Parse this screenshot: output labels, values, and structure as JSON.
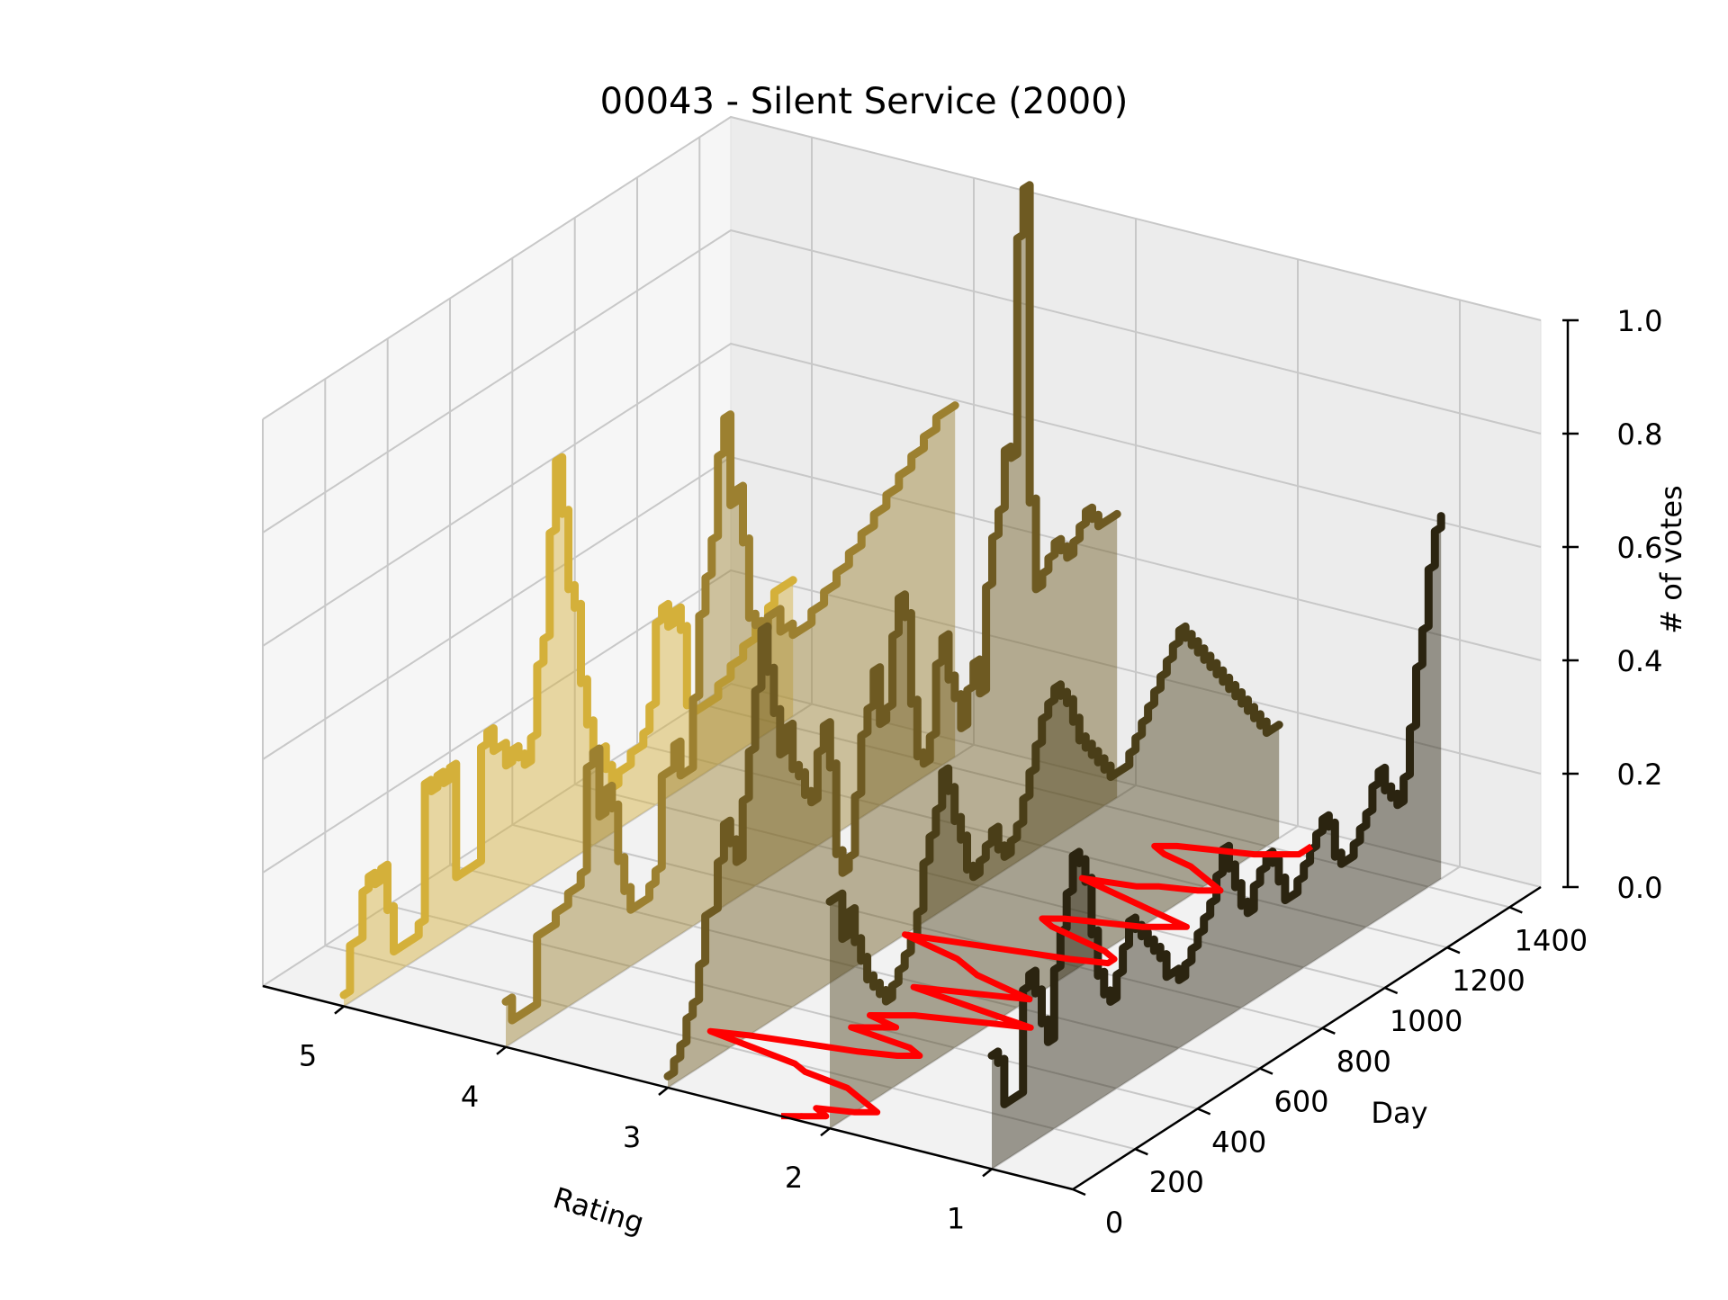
{
  "chart_data": {
    "type": "line",
    "title": "00043 - Silent Service (2000)",
    "xlabel": "Rating",
    "ylabel": "Day",
    "zlabel": "# of votes",
    "x_ticks": [
      "5",
      "4",
      "3",
      "2",
      "1"
    ],
    "y_ticks": [
      "0",
      "200",
      "400",
      "600",
      "800",
      "1000",
      "1200",
      "1400"
    ],
    "z_ticks": [
      "0.0",
      "0.2",
      "0.4",
      "0.6",
      "0.8",
      "1.0"
    ],
    "xlim": [
      0.5,
      5.5
    ],
    "ylim": [
      0,
      1500
    ],
    "zlim": [
      0,
      1.0
    ],
    "grid": true,
    "series": [
      {
        "rating": 5,
        "color": "#d4b03a",
        "x": [
          0,
          20,
          40,
          60,
          80,
          100,
          120,
          140,
          160,
          180,
          200,
          220,
          240,
          260,
          280,
          300,
          320,
          340,
          360,
          380,
          400,
          420,
          440,
          460,
          480,
          500,
          520,
          540,
          560,
          580,
          600,
          620,
          640,
          660,
          680,
          700,
          720,
          740,
          760,
          780,
          800,
          820,
          840,
          860,
          880,
          900,
          920,
          940,
          960,
          980,
          1000,
          1020,
          1040,
          1060,
          1080,
          1100,
          1120,
          1140,
          1160,
          1180,
          1200,
          1220,
          1240,
          1260,
          1280,
          1300,
          1320,
          1340,
          1360,
          1380,
          1400,
          1420,
          1440
        ],
        "y": [
          0.02,
          0.1,
          0.1,
          0.18,
          0.2,
          0.18,
          0.2,
          0.12,
          0.04,
          0.04,
          0.04,
          0.04,
          0.06,
          0.3,
          0.28,
          0.3,
          0.28,
          0.3,
          0.1,
          0.1,
          0.1,
          0.1,
          0.3,
          0.32,
          0.28,
          0.28,
          0.24,
          0.26,
          0.24,
          0.22,
          0.26,
          0.38,
          0.42,
          0.6,
          0.72,
          0.62,
          0.48,
          0.44,
          0.3,
          0.22,
          0.16,
          0.16,
          0.12,
          0.08,
          0.1,
          0.1,
          0.12,
          0.12,
          0.14,
          0.18,
          0.32,
          0.34,
          0.3,
          0.32,
          0.28,
          0.14,
          0.12,
          0.12,
          0.12,
          0.12,
          0.14,
          0.14,
          0.16,
          0.16,
          0.18,
          0.18,
          0.2,
          0.2,
          0.22,
          0.24,
          0.24,
          0.24,
          0.24
        ]
      },
      {
        "rating": 4,
        "color": "#9c8030",
        "x": [
          0,
          20,
          40,
          60,
          80,
          100,
          120,
          140,
          160,
          180,
          200,
          220,
          240,
          260,
          280,
          300,
          320,
          340,
          360,
          380,
          400,
          420,
          440,
          460,
          480,
          500,
          520,
          540,
          560,
          580,
          600,
          620,
          640,
          660,
          680,
          700,
          720,
          740,
          760,
          780,
          800,
          820,
          840,
          860,
          880,
          900,
          920,
          940,
          960,
          980,
          1000,
          1020,
          1040,
          1060,
          1080,
          1100,
          1120,
          1140,
          1160,
          1180,
          1200,
          1220,
          1240,
          1260,
          1280,
          1300,
          1320,
          1340,
          1360,
          1380,
          1400,
          1420,
          1440
        ],
        "y": [
          0.08,
          0.04,
          0.04,
          0.04,
          0.04,
          0.16,
          0.16,
          0.16,
          0.18,
          0.18,
          0.2,
          0.2,
          0.22,
          0.4,
          0.42,
          0.3,
          0.34,
          0.3,
          0.2,
          0.14,
          0.1,
          0.1,
          0.1,
          0.12,
          0.14,
          0.3,
          0.3,
          0.34,
          0.28,
          0.28,
          0.4,
          0.54,
          0.6,
          0.66,
          0.8,
          0.86,
          0.7,
          0.72,
          0.62,
          0.48,
          0.46,
          0.44,
          0.46,
          0.46,
          0.42,
          0.42,
          0.4,
          0.4,
          0.4,
          0.42,
          0.42,
          0.44,
          0.44,
          0.46,
          0.46,
          0.48,
          0.48,
          0.5,
          0.5,
          0.52,
          0.52,
          0.54,
          0.54,
          0.56,
          0.56,
          0.58,
          0.58,
          0.6,
          0.6,
          0.62,
          0.62,
          0.62,
          0.62
        ]
      },
      {
        "rating": 3,
        "color": "#6e5a22",
        "x": [
          0,
          20,
          40,
          60,
          80,
          100,
          120,
          140,
          160,
          180,
          200,
          220,
          240,
          260,
          280,
          300,
          320,
          340,
          360,
          380,
          400,
          420,
          440,
          460,
          480,
          500,
          520,
          540,
          560,
          580,
          600,
          620,
          640,
          660,
          680,
          700,
          720,
          740,
          760,
          780,
          800,
          820,
          840,
          860,
          880,
          900,
          920,
          940,
          960,
          980,
          1000,
          1020,
          1040,
          1060,
          1080,
          1100,
          1120,
          1140,
          1160,
          1180,
          1200,
          1220,
          1240,
          1260,
          1280,
          1300,
          1320,
          1340,
          1360,
          1380,
          1400,
          1420,
          1440
        ],
        "y": [
          0.02,
          0.04,
          0.06,
          0.1,
          0.12,
          0.18,
          0.26,
          0.26,
          0.34,
          0.4,
          0.36,
          0.32,
          0.42,
          0.5,
          0.6,
          0.7,
          0.62,
          0.54,
          0.46,
          0.5,
          0.42,
          0.4,
          0.36,
          0.34,
          0.42,
          0.46,
          0.38,
          0.22,
          0.18,
          0.2,
          0.3,
          0.4,
          0.44,
          0.5,
          0.4,
          0.42,
          0.54,
          0.6,
          0.56,
          0.4,
          0.3,
          0.28,
          0.32,
          0.44,
          0.48,
          0.4,
          0.36,
          0.3,
          0.36,
          0.4,
          0.34,
          0.52,
          0.6,
          0.64,
          0.74,
          0.72,
          1.1,
          1.18,
          0.62,
          0.46,
          0.48,
          0.5,
          0.52,
          0.5,
          0.48,
          0.5,
          0.52,
          0.54,
          0.52,
          0.5,
          0.5,
          0.5,
          0.5
        ]
      },
      {
        "rating": 2,
        "color": "#4a3e18",
        "x": [
          0,
          20,
          40,
          60,
          80,
          100,
          120,
          140,
          160,
          180,
          200,
          220,
          240,
          260,
          280,
          300,
          320,
          340,
          360,
          380,
          400,
          420,
          440,
          460,
          480,
          500,
          520,
          540,
          560,
          580,
          600,
          620,
          640,
          660,
          680,
          700,
          720,
          740,
          760,
          780,
          800,
          820,
          840,
          860,
          880,
          900,
          920,
          940,
          960,
          980,
          1000,
          1020,
          1040,
          1060,
          1080,
          1100,
          1120,
          1140,
          1160,
          1180,
          1200,
          1220,
          1240,
          1260,
          1280,
          1300,
          1320,
          1340,
          1360,
          1380,
          1400,
          1420,
          1440
        ],
        "y": [
          0.4,
          0.4,
          0.32,
          0.36,
          0.3,
          0.26,
          0.22,
          0.2,
          0.18,
          0.16,
          0.18,
          0.2,
          0.22,
          0.24,
          0.28,
          0.36,
          0.4,
          0.44,
          0.5,
          0.46,
          0.4,
          0.36,
          0.3,
          0.28,
          0.3,
          0.32,
          0.34,
          0.3,
          0.28,
          0.3,
          0.32,
          0.36,
          0.4,
          0.44,
          0.48,
          0.5,
          0.52,
          0.5,
          0.48,
          0.44,
          0.4,
          0.38,
          0.36,
          0.34,
          0.32,
          0.3,
          0.3,
          0.3,
          0.32,
          0.34,
          0.36,
          0.38,
          0.4,
          0.42,
          0.44,
          0.46,
          0.48,
          0.46,
          0.44,
          0.42,
          0.4,
          0.38,
          0.36,
          0.34,
          0.32,
          0.3,
          0.28,
          0.26,
          0.24,
          0.22,
          0.2,
          0.2,
          0.2
        ]
      },
      {
        "rating": 1,
        "color": "#2b2410",
        "x": [
          0,
          20,
          40,
          60,
          80,
          100,
          120,
          140,
          160,
          180,
          200,
          220,
          240,
          260,
          280,
          300,
          320,
          340,
          360,
          380,
          400,
          420,
          440,
          460,
          480,
          500,
          520,
          540,
          560,
          580,
          600,
          620,
          640,
          660,
          680,
          700,
          720,
          740,
          760,
          780,
          800,
          820,
          840,
          860,
          880,
          900,
          920,
          940,
          960,
          980,
          1000,
          1020,
          1040,
          1060,
          1080,
          1100,
          1120,
          1140,
          1160,
          1180,
          1200,
          1220,
          1240,
          1260,
          1280,
          1300,
          1320,
          1340,
          1360,
          1380,
          1400,
          1420,
          1440
        ],
        "y": [
          0.2,
          0.18,
          0.1,
          0.1,
          0.1,
          0.28,
          0.3,
          0.26,
          0.2,
          0.16,
          0.28,
          0.34,
          0.4,
          0.46,
          0.44,
          0.4,
          0.3,
          0.22,
          0.18,
          0.16,
          0.2,
          0.24,
          0.28,
          0.26,
          0.24,
          0.22,
          0.2,
          0.18,
          0.14,
          0.14,
          0.12,
          0.14,
          0.16,
          0.18,
          0.2,
          0.22,
          0.26,
          0.3,
          0.26,
          0.22,
          0.18,
          0.16,
          0.2,
          0.22,
          0.24,
          0.22,
          0.18,
          0.14,
          0.14,
          0.16,
          0.18,
          0.2,
          0.22,
          0.24,
          0.22,
          0.16,
          0.14,
          0.14,
          0.16,
          0.18,
          0.2,
          0.24,
          0.26,
          0.22,
          0.2,
          0.18,
          0.22,
          0.3,
          0.4,
          0.46,
          0.56,
          0.62,
          0.64
        ]
      }
    ],
    "mean_trace": {
      "color": "#ff0000",
      "x": [
        0,
        20,
        40,
        60,
        80,
        100,
        120,
        140,
        160,
        180,
        200,
        220,
        240,
        260,
        280,
        300,
        320,
        340,
        360,
        380,
        400,
        420,
        440,
        460,
        480,
        500,
        520,
        540,
        560,
        580,
        600,
        620,
        640,
        660,
        680,
        700,
        720,
        740,
        760,
        780,
        800,
        820,
        840,
        860,
        880,
        900,
        920,
        940,
        960,
        980,
        1000,
        1020,
        1040,
        1060,
        1080,
        1100,
        1120,
        1140,
        1160,
        1180,
        1200,
        1220,
        1240,
        1260,
        1280,
        1300,
        1320,
        1340,
        1360,
        1380,
        1400,
        1420,
        1440
      ],
      "rating": [
        2.3,
        2.2,
        2.1,
        2.2,
        2.0,
        1.9,
        2.0,
        2.1,
        2.2,
        2.5,
        2.6,
        2.9,
        3.2,
        3.0,
        2.7,
        2.4,
        2.2,
        2.1,
        2.2,
        2.6,
        2.5,
        2.4,
        2.6,
        2.5,
        2.4,
        2.2,
        2.0,
        1.8,
        2.2,
        2.6,
        2.4,
        2.2,
        2.0,
        2.2,
        2.4,
        2.5,
        2.6,
        2.8,
        3.0,
        2.7,
        2.4,
        2.1,
        1.9,
        1.9,
        2.0,
        2.2,
        2.4,
        2.5,
        2.4,
        2.2,
        2.0,
        1.9,
        1.8,
        2.0,
        2.2,
        2.4,
        2.6,
        2.3,
        2.2,
        2.0,
        1.9,
        2.0,
        2.1,
        2.2,
        2.4,
        2.5,
        2.4,
        2.2,
        2.0,
        1.9,
        1.8,
        1.8,
        1.8
      ]
    }
  }
}
